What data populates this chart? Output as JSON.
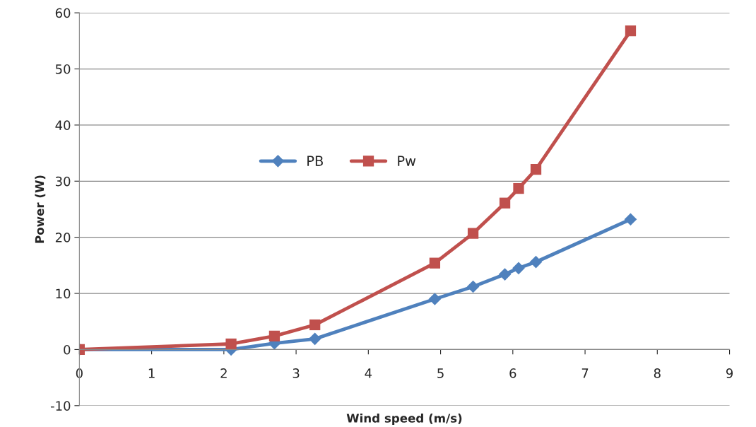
{
  "chart_data": {
    "type": "line",
    "xlabel": "Wind speed (m/s)",
    "ylabel": "Power (W)",
    "xlim": [
      0,
      9
    ],
    "xticks": [
      0,
      1,
      2,
      3,
      4,
      5,
      6,
      7,
      8,
      9
    ],
    "ylim": [
      -10,
      60
    ],
    "yticks": [
      -10,
      0,
      10,
      20,
      30,
      40,
      50,
      60
    ],
    "grid": "y",
    "legend": "left",
    "line_style": "solid",
    "series": [
      {
        "name": "PB",
        "color": "#4f81bd",
        "marker": "diamond",
        "x": [
          0,
          2.1,
          2.7,
          3.26,
          4.92,
          5.45,
          5.89,
          6.08,
          6.32,
          7.63
        ],
        "values": [
          0,
          0,
          1.1,
          1.9,
          9.0,
          11.2,
          13.4,
          14.5,
          15.6,
          23.2
        ]
      },
      {
        "name": "Pw",
        "color": "#c0504d",
        "marker": "square",
        "x": [
          0,
          2.1,
          2.7,
          3.26,
          4.92,
          5.45,
          5.89,
          6.08,
          6.32,
          7.63
        ],
        "values": [
          0,
          1.0,
          2.4,
          4.4,
          15.4,
          20.7,
          26.1,
          28.7,
          32.1,
          56.8
        ]
      }
    ]
  }
}
